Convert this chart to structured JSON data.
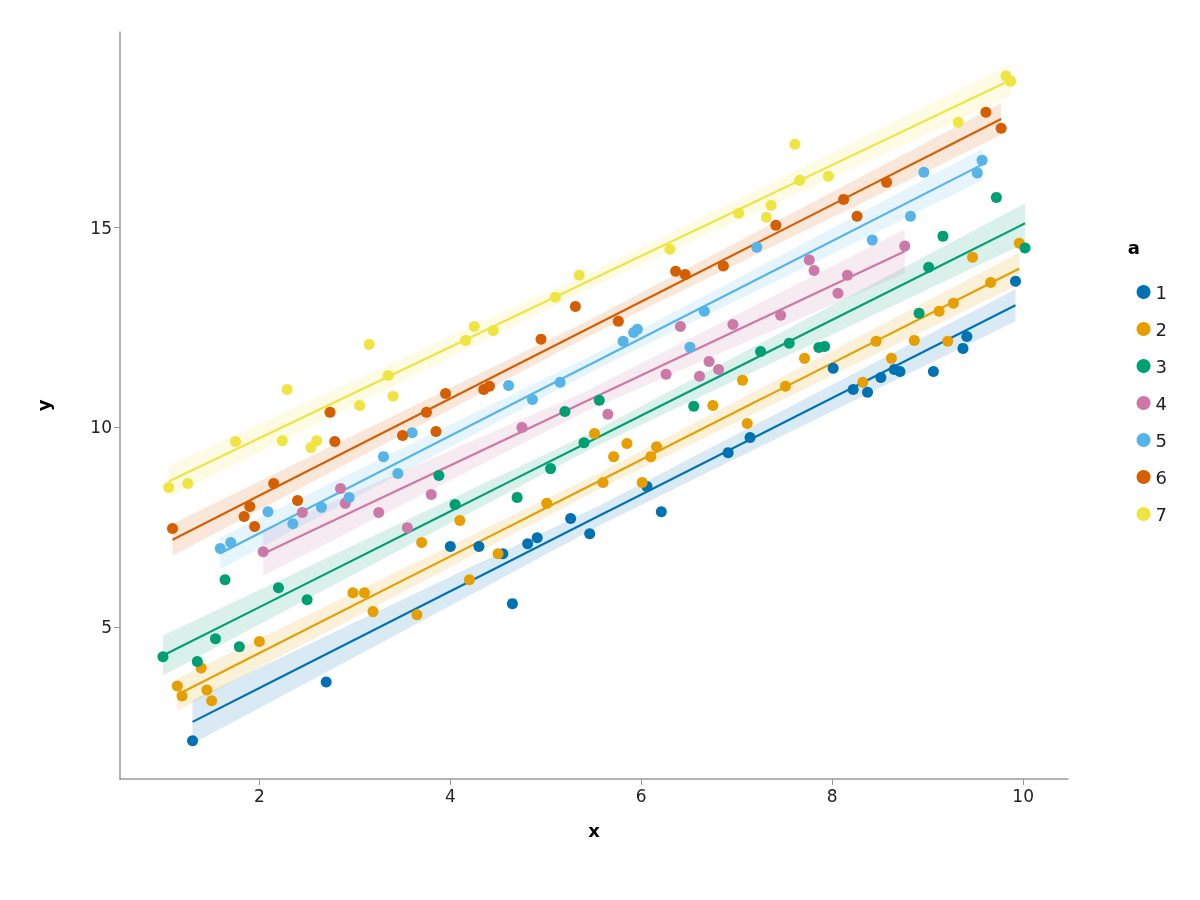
{
  "chart_data": {
    "type": "scatter",
    "xlabel": "x",
    "ylabel": "y",
    "legend_title": "a",
    "legend": "right",
    "grid": false,
    "marker": "circle",
    "xlim": [
      0.54,
      10.47
    ],
    "ylim": [
      1.2,
      19.9
    ],
    "xticks": [
      2,
      4,
      6,
      8,
      10
    ],
    "yticks": [
      5,
      10,
      15
    ],
    "series": [
      {
        "name": "1",
        "color": "#0072b2",
        "x": [
          1.3,
          2.7,
          4.0,
          4.3,
          4.55,
          4.65,
          4.81,
          4.91,
          5.26,
          5.46,
          6.06,
          6.21,
          6.91,
          7.14,
          8.01,
          8.22,
          8.37,
          8.51,
          8.65,
          8.71,
          9.06,
          9.37,
          9.41,
          9.92
        ],
        "values": [
          2.16,
          3.63,
          7.02,
          7.02,
          6.84,
          5.59,
          7.09,
          7.24,
          7.72,
          7.34,
          8.52,
          7.89,
          9.37,
          9.75,
          11.48,
          10.95,
          10.88,
          11.25,
          11.45,
          11.4,
          11.4,
          11.98,
          12.28,
          13.66
        ]
      },
      {
        "name": "2",
        "color": "#e69f00",
        "x": [
          1.14,
          1.19,
          1.39,
          1.45,
          1.5,
          2.0,
          2.98,
          3.1,
          3.19,
          3.65,
          3.7,
          4.1,
          4.2,
          4.5,
          5.01,
          5.51,
          5.6,
          5.71,
          5.85,
          6.01,
          6.1,
          6.16,
          6.75,
          7.06,
          7.11,
          7.51,
          7.71,
          8.32,
          8.46,
          8.62,
          8.86,
          9.12,
          9.21,
          9.27,
          9.47,
          9.66,
          9.96
        ],
        "values": [
          3.53,
          3.28,
          3.98,
          3.43,
          3.16,
          4.64,
          5.86,
          5.86,
          5.39,
          5.31,
          7.12,
          7.67,
          6.19,
          6.84,
          8.1,
          9.85,
          8.62,
          9.27,
          9.6,
          8.62,
          9.27,
          9.52,
          10.55,
          11.18,
          10.1,
          11.03,
          11.73,
          11.13,
          12.16,
          11.73,
          12.18,
          12.91,
          12.16,
          13.11,
          14.26,
          13.63,
          14.61
        ]
      },
      {
        "name": "3",
        "color": "#009e73",
        "x": [
          0.99,
          1.35,
          1.54,
          1.64,
          1.79,
          2.2,
          2.5,
          3.88,
          4.05,
          4.7,
          5.05,
          5.2,
          5.4,
          5.56,
          6.55,
          7.25,
          7.55,
          7.86,
          7.92,
          8.91,
          9.01,
          9.16,
          9.72,
          10.02
        ],
        "values": [
          4.26,
          4.14,
          4.71,
          6.19,
          4.51,
          5.99,
          5.69,
          8.8,
          8.07,
          8.25,
          8.97,
          10.4,
          9.62,
          10.68,
          10.53,
          11.9,
          12.11,
          12.0,
          12.03,
          12.86,
          14.01,
          14.79,
          15.76,
          14.49
        ]
      },
      {
        "name": "4",
        "color": "#cc79a7",
        "x": [
          2.04,
          2.45,
          2.85,
          2.9,
          3.25,
          3.55,
          3.8,
          4.75,
          5.65,
          6.26,
          6.41,
          6.61,
          6.71,
          6.81,
          6.96,
          7.46,
          7.76,
          7.81,
          8.06,
          8.16,
          8.76
        ],
        "values": [
          6.89,
          7.87,
          8.47,
          8.1,
          7.87,
          7.49,
          8.32,
          10.0,
          10.33,
          11.33,
          12.53,
          11.28,
          11.65,
          11.45,
          12.58,
          12.81,
          14.19,
          13.93,
          13.36,
          13.81,
          14.54
        ]
      },
      {
        "name": "5",
        "color": "#56b4e9",
        "x": [
          1.59,
          1.7,
          2.09,
          2.35,
          2.65,
          2.94,
          3.3,
          3.45,
          3.6,
          4.61,
          4.86,
          5.15,
          5.81,
          5.92,
          5.96,
          6.51,
          6.66,
          7.21,
          8.42,
          8.82,
          8.96,
          9.52,
          9.57
        ],
        "values": [
          6.97,
          7.12,
          7.89,
          7.59,
          8.0,
          8.25,
          9.27,
          8.85,
          9.87,
          11.05,
          10.7,
          11.13,
          12.16,
          12.38,
          12.46,
          12.01,
          12.91,
          14.51,
          14.69,
          15.29,
          16.39,
          16.37,
          16.69
        ]
      },
      {
        "name": "6",
        "color": "#d55e00",
        "x": [
          1.09,
          1.84,
          1.9,
          1.95,
          2.15,
          2.4,
          2.74,
          2.79,
          3.5,
          3.75,
          3.85,
          3.95,
          4.35,
          4.41,
          4.95,
          5.31,
          5.76,
          6.36,
          6.46,
          6.86,
          7.41,
          8.12,
          8.26,
          8.57,
          9.61,
          9.77
        ],
        "values": [
          7.47,
          7.77,
          8.02,
          7.52,
          8.6,
          8.17,
          10.38,
          9.65,
          9.8,
          10.38,
          9.9,
          10.85,
          10.95,
          11.03,
          12.21,
          13.03,
          12.66,
          13.91,
          13.83,
          14.04,
          15.06,
          15.71,
          15.29,
          16.14,
          17.89,
          17.49
        ]
      },
      {
        "name": "7",
        "color": "#f0e442",
        "x": [
          1.05,
          1.25,
          1.75,
          2.24,
          2.29,
          2.54,
          2.6,
          3.05,
          3.15,
          3.35,
          3.4,
          4.16,
          4.25,
          4.45,
          5.1,
          5.35,
          6.3,
          7.02,
          7.31,
          7.36,
          7.61,
          7.66,
          7.96,
          9.32,
          9.82,
          9.87
        ],
        "values": [
          8.5,
          8.6,
          9.65,
          9.67,
          10.95,
          9.5,
          9.67,
          10.55,
          12.08,
          11.3,
          10.78,
          12.18,
          12.53,
          12.43,
          13.26,
          13.81,
          14.46,
          15.36,
          15.26,
          15.56,
          17.09,
          16.19,
          16.29,
          17.64,
          18.8,
          18.67
        ]
      },
      {
        "type": "line",
        "marker": "none",
        "color": "#0072b2",
        "x": [
          1.3,
          5.61,
          9.92
        ],
        "values": [
          2.63,
          7.85,
          13.06
        ],
        "lower": [
          2.08,
          7.6,
          12.66
        ],
        "upper": [
          3.18,
          8.1,
          13.46
        ]
      },
      {
        "type": "line",
        "marker": "none",
        "color": "#e69f00",
        "x": [
          1.14,
          5.55,
          9.96
        ],
        "values": [
          3.31,
          8.65,
          13.98
        ],
        "lower": [
          2.91,
          8.45,
          13.58
        ],
        "upper": [
          3.71,
          8.85,
          14.38
        ]
      },
      {
        "type": "line",
        "marker": "none",
        "color": "#009e73",
        "x": [
          0.99,
          5.5,
          10.02
        ],
        "values": [
          4.29,
          9.7,
          15.11
        ],
        "lower": [
          3.79,
          9.5,
          14.61
        ],
        "upper": [
          4.79,
          9.9,
          15.61
        ]
      },
      {
        "type": "line",
        "marker": "none",
        "color": "#cc79a7",
        "x": [
          2.04,
          5.4,
          8.76
        ],
        "values": [
          6.84,
          10.63,
          14.41
        ],
        "lower": [
          6.29,
          10.38,
          13.86
        ],
        "upper": [
          7.39,
          10.88,
          14.96
        ]
      },
      {
        "type": "line",
        "marker": "none",
        "color": "#56b4e9",
        "x": [
          1.59,
          5.58,
          9.57
        ],
        "values": [
          6.85,
          11.72,
          16.58
        ],
        "lower": [
          6.45,
          11.52,
          16.18
        ],
        "upper": [
          7.25,
          11.92,
          16.98
        ]
      },
      {
        "type": "line",
        "marker": "none",
        "color": "#d55e00",
        "x": [
          1.09,
          5.43,
          9.77
        ],
        "values": [
          7.19,
          12.46,
          17.72
        ],
        "lower": [
          6.79,
          12.26,
          17.32
        ],
        "upper": [
          7.59,
          12.66,
          18.12
        ]
      },
      {
        "type": "line",
        "marker": "none",
        "color": "#f0e442",
        "x": [
          1.05,
          5.46,
          9.87
        ],
        "values": [
          8.65,
          13.68,
          18.7
        ],
        "lower": [
          8.25,
          13.48,
          18.3
        ],
        "upper": [
          9.05,
          13.88,
          19.1
        ]
      }
    ]
  }
}
